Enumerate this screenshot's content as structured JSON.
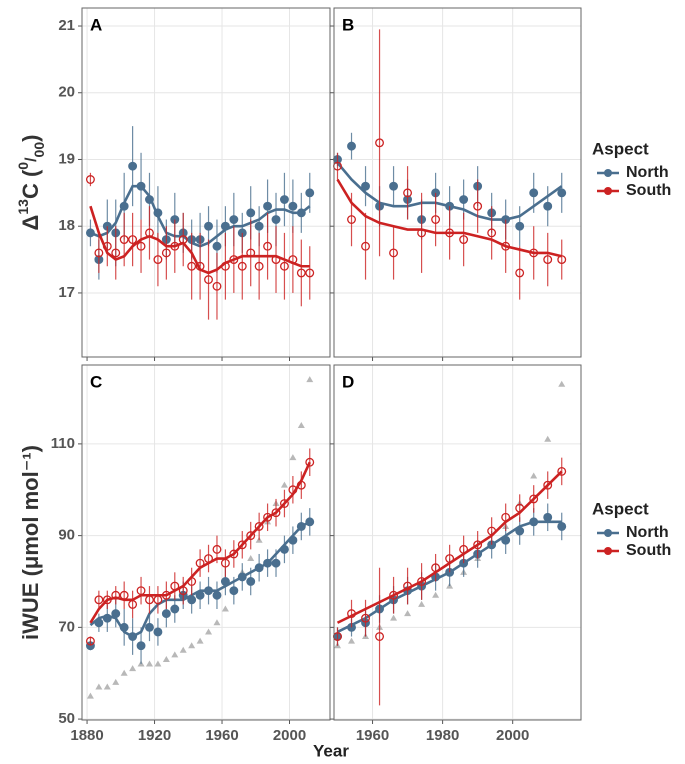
{
  "chart_data": [
    {
      "type": "scatter",
      "panel": "A",
      "y_label_parts": [
        "Δ",
        "13",
        "C (",
        "0",
        "/",
        "00",
        ")"
      ],
      "legend_title": "Aspect",
      "xlim": [
        1877,
        2024
      ],
      "ylim": [
        16.04,
        21.27
      ],
      "xticks": [
        1880,
        1920,
        1960,
        2000
      ],
      "yticks": [
        17,
        18,
        19,
        20,
        21
      ],
      "tick_labels": {
        "x": false,
        "y": true
      },
      "grid": true,
      "x": [
        1882,
        1887,
        1892,
        1897,
        1902,
        1907,
        1912,
        1917,
        1922,
        1927,
        1932,
        1937,
        1942,
        1947,
        1952,
        1957,
        1962,
        1967,
        1972,
        1977,
        1982,
        1987,
        1992,
        1997,
        2002,
        2007,
        2012
      ],
      "series": [
        {
          "name": "North",
          "color": "#4a6f8f",
          "marker": "filled",
          "values": [
            17.9,
            17.5,
            18.0,
            17.9,
            18.3,
            18.9,
            18.6,
            18.4,
            18.2,
            17.8,
            18.1,
            17.9,
            17.8,
            17.8,
            18.0,
            17.7,
            18.0,
            18.1,
            17.9,
            18.2,
            18.0,
            18.3,
            18.1,
            18.4,
            18.3,
            18.2,
            18.5
          ],
          "errors": [
            0.2,
            0.3,
            0.4,
            0.5,
            0.5,
            0.6,
            0.5,
            0.4,
            0.4,
            0.3,
            0.4,
            0.3,
            0.3,
            0.4,
            0.3,
            0.4,
            0.3,
            0.4,
            0.3,
            0.4,
            0.3,
            0.4,
            0.4,
            0.4,
            0.4,
            0.3,
            0.3
          ],
          "fit": [
            17.9,
            17.85,
            17.9,
            18.05,
            18.35,
            18.6,
            18.6,
            18.45,
            18.15,
            17.9,
            17.85,
            17.85,
            17.75,
            17.7,
            17.75,
            17.85,
            17.95,
            18.0,
            18.0,
            18.05,
            18.1,
            18.2,
            18.25,
            18.25,
            18.2,
            18.2,
            18.3
          ]
        },
        {
          "name": "South",
          "color": "#cc2222",
          "marker": "open",
          "values": [
            18.7,
            17.6,
            17.7,
            17.6,
            17.8,
            17.8,
            17.7,
            17.9,
            17.5,
            17.6,
            17.7,
            17.8,
            17.4,
            17.4,
            17.2,
            17.1,
            17.4,
            17.5,
            17.4,
            17.6,
            17.4,
            17.7,
            17.5,
            17.4,
            17.5,
            17.3,
            17.3
          ],
          "errors": [
            0.1,
            0.3,
            0.3,
            0.4,
            0.4,
            0.4,
            0.4,
            0.4,
            0.4,
            0.4,
            0.4,
            0.4,
            0.5,
            0.5,
            0.6,
            0.5,
            0.5,
            0.5,
            0.5,
            0.5,
            0.5,
            0.5,
            0.5,
            0.5,
            0.5,
            0.5,
            0.4
          ],
          "fit": [
            18.3,
            17.9,
            17.6,
            17.5,
            17.55,
            17.7,
            17.8,
            17.85,
            17.8,
            17.7,
            17.7,
            17.75,
            17.6,
            17.35,
            17.3,
            17.35,
            17.45,
            17.5,
            17.55,
            17.55,
            17.55,
            17.55,
            17.55,
            17.5,
            17.45,
            17.4,
            17.4
          ]
        }
      ]
    },
    {
      "type": "scatter",
      "panel": "B",
      "xlim": [
        1949,
        2019.5
      ],
      "ylim": [
        16.04,
        21.27
      ],
      "xticks": [
        1960,
        1980,
        2000
      ],
      "yticks": [
        17,
        18,
        19,
        20,
        21
      ],
      "tick_labels": {
        "x": false,
        "y": false
      },
      "grid": true,
      "x": [
        1950,
        1954,
        1958,
        1962,
        1966,
        1970,
        1974,
        1978,
        1982,
        1986,
        1990,
        1994,
        1998,
        2002,
        2006,
        2010,
        2014
      ],
      "series": [
        {
          "name": "North",
          "color": "#4a6f8f",
          "marker": "filled",
          "values": [
            19.0,
            19.2,
            18.6,
            18.3,
            18.6,
            18.4,
            18.1,
            18.5,
            18.3,
            18.4,
            18.6,
            18.2,
            18.1,
            18.0,
            18.5,
            18.3,
            18.5
          ],
          "errors": [
            0.1,
            0.2,
            0.3,
            0.3,
            0.3,
            0.3,
            0.3,
            0.3,
            0.3,
            0.3,
            0.3,
            0.3,
            0.3,
            0.3,
            0.3,
            0.3,
            0.3
          ],
          "fit": [
            18.95,
            18.7,
            18.5,
            18.35,
            18.3,
            18.3,
            18.35,
            18.35,
            18.3,
            18.25,
            18.15,
            18.1,
            18.1,
            18.15,
            18.3,
            18.45,
            18.6
          ]
        },
        {
          "name": "South",
          "color": "#cc2222",
          "marker": "open",
          "values": [
            18.9,
            18.1,
            17.7,
            19.25,
            17.6,
            18.5,
            17.9,
            18.1,
            17.9,
            17.8,
            18.3,
            17.9,
            17.7,
            17.3,
            17.6,
            17.5,
            17.5
          ],
          "errors": [
            0.2,
            0.4,
            0.5,
            1.7,
            0.4,
            0.4,
            0.6,
            0.4,
            0.4,
            0.4,
            0.4,
            0.4,
            0.4,
            0.4,
            0.4,
            0.4,
            0.3
          ],
          "fit": [
            18.7,
            18.35,
            18.15,
            18.05,
            18.0,
            17.95,
            17.95,
            17.9,
            17.9,
            17.9,
            17.85,
            17.8,
            17.7,
            17.65,
            17.6,
            17.6,
            17.55
          ]
        }
      ]
    },
    {
      "type": "scatter",
      "panel": "C",
      "y_label": "iWUE (μmol mol⁻¹)",
      "x_label": "Year",
      "legend_title": "Aspect",
      "xlim": [
        1877,
        2024
      ],
      "ylim": [
        49.8,
        127.2
      ],
      "xticks": [
        1880,
        1920,
        1960,
        2000
      ],
      "yticks": [
        50,
        70,
        90,
        110
      ],
      "tick_labels": {
        "x": true,
        "y": true
      },
      "grid": true,
      "x": [
        1882,
        1887,
        1892,
        1897,
        1902,
        1907,
        1912,
        1917,
        1922,
        1927,
        1932,
        1937,
        1942,
        1947,
        1952,
        1957,
        1962,
        1967,
        1972,
        1977,
        1982,
        1987,
        1992,
        1997,
        2002,
        2007,
        2012
      ],
      "reference": {
        "color": "#b8b8b8",
        "values": [
          55,
          57,
          57,
          58,
          60,
          61,
          62,
          62,
          62,
          63,
          64,
          65,
          66,
          67,
          69,
          71,
          74,
          78,
          82,
          85,
          89,
          93,
          97,
          101,
          107,
          114,
          124
        ]
      },
      "series": [
        {
          "name": "North",
          "color": "#4a6f8f",
          "marker": "filled",
          "values": [
            66,
            71,
            72,
            73,
            70,
            68,
            66,
            70,
            69,
            73,
            74,
            77,
            76,
            77,
            78,
            77,
            80,
            78,
            81,
            80,
            83,
            84,
            84,
            87,
            89,
            92,
            93
          ],
          "errors": [
            1,
            2,
            3,
            3,
            4,
            4,
            4,
            3,
            3,
            3,
            3,
            3,
            3,
            3,
            3,
            3,
            3,
            3,
            3,
            3,
            3,
            3,
            3,
            3,
            3,
            3,
            3
          ],
          "fit": [
            70.5,
            72,
            72.5,
            72,
            69,
            68,
            69,
            73,
            75,
            76,
            76,
            76,
            77,
            78,
            78,
            78,
            79,
            80,
            81,
            82,
            83,
            84,
            86,
            88,
            90,
            92,
            93
          ]
        },
        {
          "name": "South",
          "color": "#cc2222",
          "marker": "open",
          "values": [
            67,
            76,
            76,
            77,
            77,
            75,
            78,
            76,
            76,
            77,
            79,
            78,
            80,
            84,
            85,
            87,
            84,
            86,
            88,
            90,
            92,
            94,
            95,
            97,
            100,
            101,
            106
          ],
          "errors": [
            1,
            2,
            2,
            2,
            3,
            3,
            3,
            3,
            3,
            3,
            3,
            3,
            3,
            3,
            3,
            3,
            3,
            3,
            3,
            3,
            3,
            3,
            3,
            3,
            3,
            3,
            3
          ],
          "fit": [
            71,
            74,
            76,
            76.5,
            76,
            76,
            77,
            77,
            77,
            77,
            78,
            79,
            81,
            83,
            84,
            85,
            85,
            86,
            88,
            90,
            92,
            94,
            95,
            97,
            99,
            102,
            106
          ]
        }
      ]
    },
    {
      "type": "scatter",
      "panel": "D",
      "legend_title": "Aspect",
      "xlim": [
        1949,
        2019.5
      ],
      "ylim": [
        49.8,
        127.2
      ],
      "xticks": [
        1960,
        1980,
        2000
      ],
      "yticks": [
        50,
        70,
        90,
        110
      ],
      "tick_labels": {
        "x": true,
        "y": false
      },
      "grid": true,
      "x": [
        1950,
        1954,
        1958,
        1962,
        1966,
        1970,
        1974,
        1978,
        1982,
        1986,
        1990,
        1994,
        1998,
        2002,
        2006,
        2010,
        2014
      ],
      "reference": {
        "color": "#b8b8b8",
        "values": [
          66,
          67,
          68,
          70,
          72,
          73,
          75,
          77,
          79,
          82,
          85,
          88,
          92,
          97,
          103,
          111,
          123
        ]
      },
      "series": [
        {
          "name": "North",
          "color": "#4a6f8f",
          "marker": "filled",
          "values": [
            68,
            70,
            71,
            74,
            76,
            78,
            79,
            81,
            82,
            84,
            86,
            88,
            89,
            91,
            93,
            94,
            92
          ],
          "errors": [
            2,
            2,
            3,
            3,
            3,
            3,
            3,
            3,
            3,
            3,
            3,
            3,
            3,
            3,
            3,
            3,
            3
          ],
          "fit": [
            69,
            70.5,
            72,
            74,
            76,
            77.5,
            79,
            80.5,
            82,
            84,
            86,
            88,
            90,
            92,
            93,
            93,
            93
          ]
        },
        {
          "name": "South",
          "color": "#cc2222",
          "marker": "open",
          "values": [
            68,
            73,
            72,
            68,
            77,
            79,
            80,
            83,
            85,
            87,
            88,
            91,
            94,
            96,
            98,
            101,
            104
          ],
          "errors": [
            2,
            3,
            4,
            15,
            4,
            4,
            4,
            3,
            3,
            3,
            3,
            3,
            3,
            3,
            3,
            3,
            3
          ],
          "fit": [
            71,
            72.5,
            74,
            75.5,
            77,
            78.5,
            80,
            82,
            84,
            86,
            88,
            90,
            93,
            95,
            98,
            101,
            104
          ]
        }
      ]
    }
  ]
}
